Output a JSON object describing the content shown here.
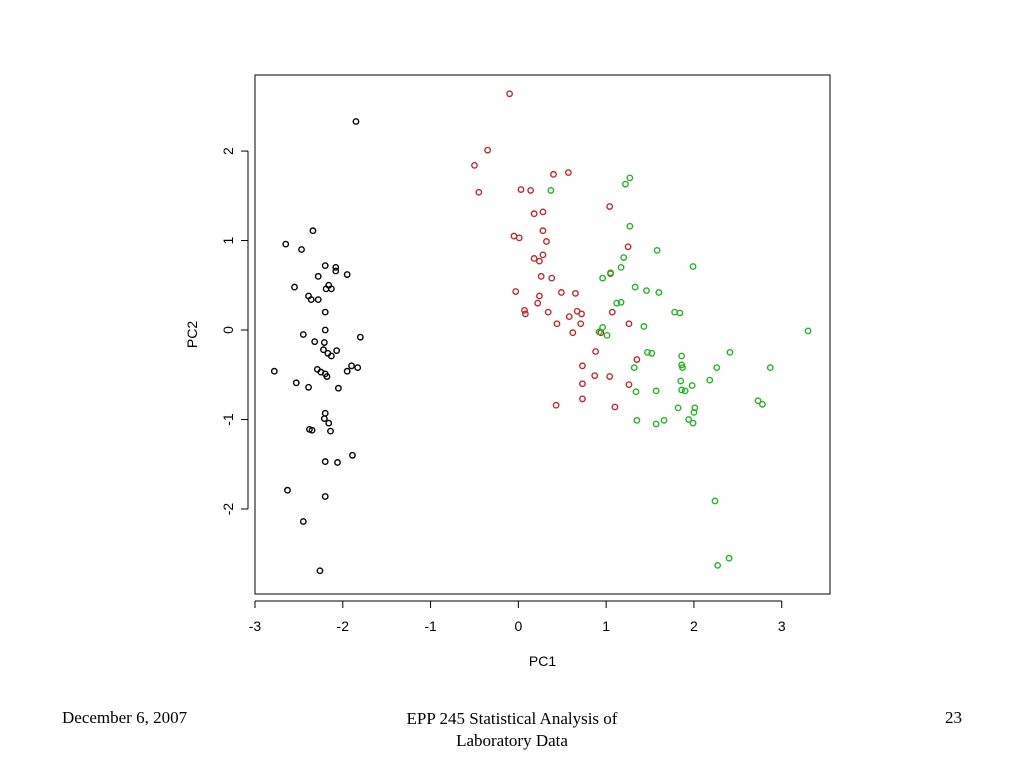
{
  "footer": {
    "date": "December 6, 2007",
    "title_line1": "EPP 245 Statistical Analysis of",
    "title_line2": "Laboratory Data",
    "page": "23"
  },
  "chart_data": {
    "type": "scatter",
    "title": "",
    "xlabel": "PC1",
    "ylabel": "PC2",
    "xlim": [
      -3.0,
      3.55
    ],
    "ylim": [
      -2.95,
      2.85
    ],
    "xticks": [
      -3,
      -2,
      -1,
      0,
      1,
      2,
      3
    ],
    "yticks": [
      -2,
      -1,
      0,
      1,
      2
    ],
    "grid": false,
    "series": [
      {
        "color": "#000000",
        "points": [
          [
            -1.85,
            2.33
          ],
          [
            -2.34,
            1.11
          ],
          [
            -2.65,
            0.96
          ],
          [
            -2.47,
            0.9
          ],
          [
            -2.2,
            0.72
          ],
          [
            -2.08,
            0.7
          ],
          [
            -2.08,
            0.66
          ],
          [
            -2.28,
            0.6
          ],
          [
            -1.95,
            0.62
          ],
          [
            -2.55,
            0.48
          ],
          [
            -2.16,
            0.5
          ],
          [
            -2.13,
            0.46
          ],
          [
            -2.19,
            0.46
          ],
          [
            -2.39,
            0.38
          ],
          [
            -2.36,
            0.34
          ],
          [
            -2.28,
            0.34
          ],
          [
            -2.2,
            0.2
          ],
          [
            -2.2,
            0.0
          ],
          [
            -2.45,
            -0.05
          ],
          [
            -1.8,
            -0.08
          ],
          [
            -2.32,
            -0.13
          ],
          [
            -2.21,
            -0.14
          ],
          [
            -2.22,
            -0.22
          ],
          [
            -2.17,
            -0.26
          ],
          [
            -2.07,
            -0.23
          ],
          [
            -2.13,
            -0.29
          ],
          [
            -1.9,
            -0.4
          ],
          [
            -1.83,
            -0.42
          ],
          [
            -2.29,
            -0.44
          ],
          [
            -2.78,
            -0.46
          ],
          [
            -1.95,
            -0.46
          ],
          [
            -2.25,
            -0.47
          ],
          [
            -2.2,
            -0.49
          ],
          [
            -2.18,
            -0.52
          ],
          [
            -2.53,
            -0.59
          ],
          [
            -2.39,
            -0.64
          ],
          [
            -2.05,
            -0.65
          ],
          [
            -2.2,
            -0.93
          ],
          [
            -2.21,
            -0.99
          ],
          [
            -2.16,
            -1.04
          ],
          [
            -2.38,
            -1.11
          ],
          [
            -2.35,
            -1.12
          ],
          [
            -2.14,
            -1.13
          ],
          [
            -1.89,
            -1.4
          ],
          [
            -2.2,
            -1.47
          ],
          [
            -2.06,
            -1.48
          ],
          [
            -2.63,
            -1.79
          ],
          [
            -2.2,
            -1.86
          ],
          [
            -2.45,
            -2.14
          ],
          [
            -2.26,
            -2.69
          ]
        ]
      },
      {
        "color": "#c0272d",
        "points": [
          [
            -0.1,
            2.64
          ],
          [
            -0.35,
            2.01
          ],
          [
            -0.5,
            1.84
          ],
          [
            -0.45,
            1.54
          ],
          [
            0.4,
            1.74
          ],
          [
            0.57,
            1.76
          ],
          [
            0.03,
            1.57
          ],
          [
            0.14,
            1.56
          ],
          [
            1.04,
            1.38
          ],
          [
            0.28,
            1.32
          ],
          [
            0.18,
            1.3
          ],
          [
            0.28,
            1.11
          ],
          [
            -0.05,
            1.05
          ],
          [
            0.01,
            1.03
          ],
          [
            0.32,
            0.99
          ],
          [
            1.25,
            0.93
          ],
          [
            0.28,
            0.84
          ],
          [
            0.18,
            0.8
          ],
          [
            0.24,
            0.77
          ],
          [
            1.05,
            0.63
          ],
          [
            0.26,
            0.6
          ],
          [
            0.38,
            0.58
          ],
          [
            -0.03,
            0.43
          ],
          [
            0.49,
            0.42
          ],
          [
            0.65,
            0.41
          ],
          [
            0.24,
            0.38
          ],
          [
            0.22,
            0.3
          ],
          [
            0.07,
            0.22
          ],
          [
            0.08,
            0.18
          ],
          [
            0.34,
            0.2
          ],
          [
            0.67,
            0.21
          ],
          [
            0.72,
            0.18
          ],
          [
            0.58,
            0.15
          ],
          [
            1.07,
            0.2
          ],
          [
            0.44,
            0.07
          ],
          [
            0.71,
            0.07
          ],
          [
            1.26,
            0.07
          ],
          [
            0.62,
            -0.03
          ],
          [
            0.94,
            -0.03
          ],
          [
            0.88,
            -0.24
          ],
          [
            1.35,
            -0.33
          ],
          [
            0.73,
            -0.4
          ],
          [
            0.87,
            -0.51
          ],
          [
            1.04,
            -0.52
          ],
          [
            0.73,
            -0.6
          ],
          [
            1.26,
            -0.61
          ],
          [
            0.73,
            -0.77
          ],
          [
            0.43,
            -0.84
          ],
          [
            1.1,
            -0.86
          ]
        ]
      },
      {
        "color": "#22b222",
        "points": [
          [
            0.37,
            1.56
          ],
          [
            1.27,
            1.7
          ],
          [
            1.22,
            1.63
          ],
          [
            1.27,
            1.16
          ],
          [
            1.58,
            0.89
          ],
          [
            1.2,
            0.81
          ],
          [
            1.17,
            0.7
          ],
          [
            1.99,
            0.71
          ],
          [
            1.05,
            0.64
          ],
          [
            0.96,
            0.58
          ],
          [
            1.33,
            0.48
          ],
          [
            1.46,
            0.44
          ],
          [
            1.6,
            0.42
          ],
          [
            1.12,
            0.3
          ],
          [
            1.17,
            0.31
          ],
          [
            1.78,
            0.2
          ],
          [
            1.84,
            0.19
          ],
          [
            1.43,
            0.04
          ],
          [
            0.96,
            0.03
          ],
          [
            0.92,
            -0.02
          ],
          [
            1.01,
            -0.06
          ],
          [
            3.3,
            -0.01
          ],
          [
            1.47,
            -0.25
          ],
          [
            1.52,
            -0.26
          ],
          [
            1.86,
            -0.29
          ],
          [
            2.41,
            -0.25
          ],
          [
            1.86,
            -0.39
          ],
          [
            1.87,
            -0.42
          ],
          [
            1.32,
            -0.42
          ],
          [
            2.26,
            -0.42
          ],
          [
            2.87,
            -0.42
          ],
          [
            2.18,
            -0.56
          ],
          [
            1.85,
            -0.57
          ],
          [
            1.98,
            -0.62
          ],
          [
            1.86,
            -0.67
          ],
          [
            1.9,
            -0.68
          ],
          [
            1.34,
            -0.69
          ],
          [
            1.57,
            -0.68
          ],
          [
            2.73,
            -0.79
          ],
          [
            2.78,
            -0.83
          ],
          [
            1.82,
            -0.87
          ],
          [
            2.01,
            -0.87
          ],
          [
            2.0,
            -0.92
          ],
          [
            1.94,
            -1.0
          ],
          [
            1.35,
            -1.01
          ],
          [
            1.66,
            -1.01
          ],
          [
            1.99,
            -1.04
          ],
          [
            1.57,
            -1.05
          ],
          [
            2.24,
            -1.91
          ],
          [
            2.4,
            -2.55
          ],
          [
            2.27,
            -2.63
          ]
        ]
      }
    ]
  }
}
